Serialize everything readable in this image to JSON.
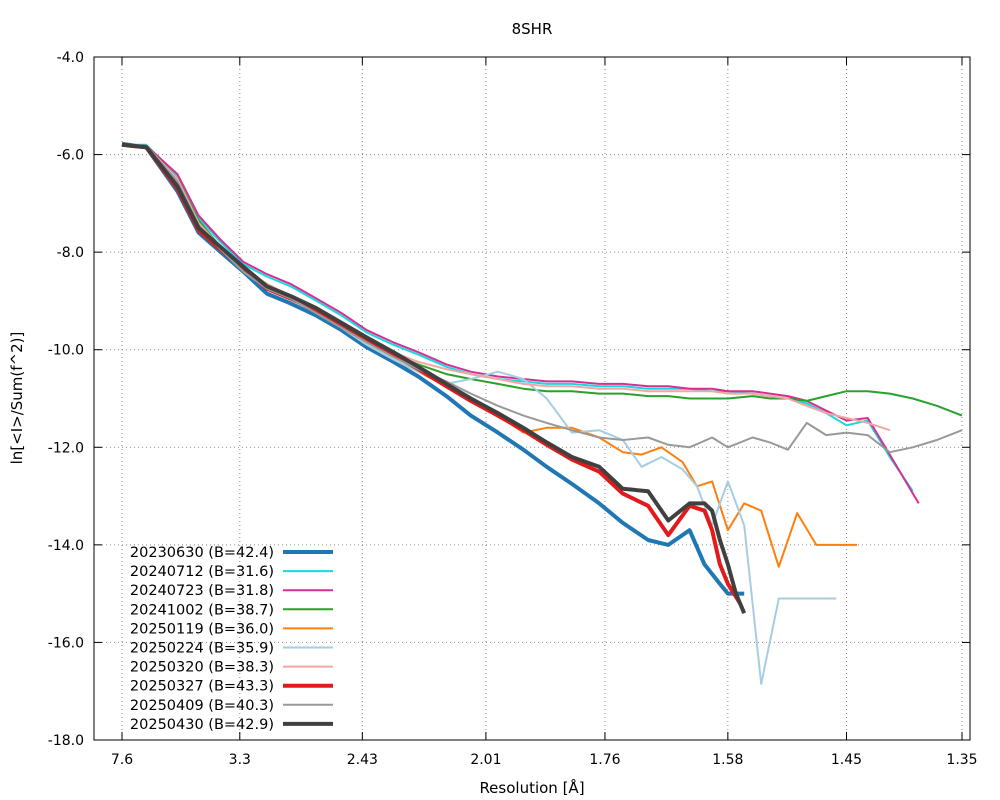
{
  "chart_data": {
    "type": "line",
    "title": "8SHR",
    "xlabel": "Resolution [Å]",
    "ylabel": "ln[<I>/Sum(f^2)]",
    "x_scale": "1/d^2",
    "xlim": [
      7.6,
      1.35
    ],
    "ylim": [
      -18.0,
      -4.0
    ],
    "x_ticks": [
      {
        "value": 7.6,
        "label": "7.6"
      },
      {
        "value": 3.3,
        "label": "3.3"
      },
      {
        "value": 2.43,
        "label": "2.43"
      },
      {
        "value": 2.01,
        "label": "2.01"
      },
      {
        "value": 1.76,
        "label": "1.76"
      },
      {
        "value": 1.58,
        "label": "1.58"
      },
      {
        "value": 1.45,
        "label": "1.45"
      },
      {
        "value": 1.35,
        "label": "1.35"
      }
    ],
    "y_ticks": [
      {
        "value": -4.0,
        "label": "-4.0"
      },
      {
        "value": -6.0,
        "label": "-6.0"
      },
      {
        "value": -8.0,
        "label": "-8.0"
      },
      {
        "value": -10.0,
        "label": "-10.0"
      },
      {
        "value": -12.0,
        "label": "-12.0"
      },
      {
        "value": -14.0,
        "label": "-14.0"
      },
      {
        "value": -16.0,
        "label": "-16.0"
      },
      {
        "value": -18.0,
        "label": "-18.0"
      }
    ],
    "grid": true,
    "legend_position": "bottom-left",
    "series": [
      {
        "name": "20230630 (B=42.4)",
        "color": "#1f77b4",
        "width": 4,
        "x": [
          7.6,
          5.53,
          4.37,
          3.9,
          3.54,
          3.26,
          3.03,
          2.84,
          2.67,
          2.53,
          2.41,
          2.3,
          2.21,
          2.12,
          2.05,
          1.98,
          1.92,
          1.87,
          1.82,
          1.77,
          1.73,
          1.69,
          1.66,
          1.63,
          1.61,
          1.59,
          1.58,
          1.56
        ],
        "y": [
          -5.78,
          -5.85,
          -6.75,
          -7.6,
          -8.0,
          -8.4,
          -8.85,
          -9.05,
          -9.3,
          -9.6,
          -9.95,
          -10.25,
          -10.55,
          -10.95,
          -11.35,
          -11.7,
          -12.05,
          -12.4,
          -12.75,
          -13.15,
          -13.55,
          -13.9,
          -14.0,
          -13.7,
          -14.4,
          -14.8,
          -15.0,
          -15.0
        ]
      },
      {
        "name": "20240712 (B=31.6)",
        "color": "#17d8e0",
        "width": 2,
        "x": [
          7.6,
          5.53,
          4.37,
          3.9,
          3.54,
          3.26,
          3.03,
          2.84,
          2.67,
          2.53,
          2.41,
          2.3,
          2.21,
          2.12,
          2.05,
          1.98,
          1.92,
          1.87,
          1.82,
          1.77,
          1.73,
          1.69,
          1.66,
          1.63,
          1.6,
          1.58,
          1.55,
          1.53,
          1.51,
          1.49,
          1.47,
          1.45,
          1.43,
          1.41,
          1.39
        ],
        "y": [
          -5.8,
          -5.8,
          -6.45,
          -7.3,
          -7.8,
          -8.25,
          -8.5,
          -8.7,
          -9.0,
          -9.3,
          -9.65,
          -9.9,
          -10.1,
          -10.35,
          -10.5,
          -10.6,
          -10.65,
          -10.7,
          -10.7,
          -10.75,
          -10.75,
          -10.8,
          -10.8,
          -10.8,
          -10.85,
          -10.85,
          -10.9,
          -10.95,
          -11.0,
          -11.1,
          -11.3,
          -11.55,
          -11.45,
          -12.2,
          -12.9
        ]
      },
      {
        "name": "20240723 (B=31.8)",
        "color": "#d62f92",
        "width": 2,
        "x": [
          7.6,
          5.53,
          4.37,
          3.9,
          3.54,
          3.26,
          3.03,
          2.84,
          2.67,
          2.53,
          2.41,
          2.3,
          2.21,
          2.12,
          2.05,
          1.98,
          1.92,
          1.87,
          1.82,
          1.77,
          1.73,
          1.69,
          1.66,
          1.63,
          1.6,
          1.58,
          1.55,
          1.53,
          1.51,
          1.49,
          1.47,
          1.45,
          1.43,
          1.41,
          1.385
        ],
        "y": [
          -5.8,
          -5.82,
          -6.4,
          -7.25,
          -7.75,
          -8.2,
          -8.45,
          -8.65,
          -8.95,
          -9.25,
          -9.6,
          -9.85,
          -10.05,
          -10.3,
          -10.45,
          -10.55,
          -10.6,
          -10.65,
          -10.65,
          -10.7,
          -10.7,
          -10.75,
          -10.75,
          -10.8,
          -10.8,
          -10.85,
          -10.85,
          -10.9,
          -10.95,
          -11.05,
          -11.25,
          -11.45,
          -11.4,
          -12.15,
          -13.15
        ]
      },
      {
        "name": "20241002 (B=38.7)",
        "color": "#2ca02c",
        "width": 2,
        "x": [
          7.6,
          5.53,
          4.37,
          3.9,
          3.54,
          3.26,
          3.03,
          2.84,
          2.67,
          2.53,
          2.41,
          2.3,
          2.21,
          2.12,
          2.05,
          1.98,
          1.92,
          1.87,
          1.82,
          1.77,
          1.73,
          1.69,
          1.66,
          1.63,
          1.6,
          1.58,
          1.55,
          1.53,
          1.51,
          1.49,
          1.47,
          1.45,
          1.43,
          1.41,
          1.39,
          1.37,
          1.35
        ],
        "y": [
          -5.8,
          -5.82,
          -6.5,
          -7.35,
          -7.9,
          -8.35,
          -8.65,
          -8.9,
          -9.2,
          -9.5,
          -9.85,
          -10.1,
          -10.3,
          -10.5,
          -10.6,
          -10.7,
          -10.8,
          -10.85,
          -10.85,
          -10.9,
          -10.9,
          -10.95,
          -10.95,
          -11.0,
          -11.0,
          -11.0,
          -10.95,
          -11.0,
          -11.0,
          -11.05,
          -10.95,
          -10.85,
          -10.85,
          -10.9,
          -11.0,
          -11.15,
          -11.35
        ]
      },
      {
        "name": "20250119 (B=36.0)",
        "color": "#ff7f0e",
        "width": 2,
        "x": [
          7.6,
          5.53,
          4.37,
          3.9,
          3.54,
          3.26,
          3.03,
          2.84,
          2.67,
          2.53,
          2.41,
          2.3,
          2.21,
          2.12,
          2.05,
          1.98,
          1.92,
          1.87,
          1.82,
          1.77,
          1.73,
          1.7,
          1.67,
          1.64,
          1.62,
          1.6,
          1.58,
          1.56,
          1.54,
          1.52,
          1.5,
          1.48,
          1.46,
          1.44
        ],
        "y": [
          -5.8,
          -5.83,
          -6.55,
          -7.45,
          -7.95,
          -8.4,
          -8.75,
          -8.95,
          -9.25,
          -9.55,
          -9.9,
          -10.2,
          -10.45,
          -10.75,
          -11.0,
          -11.35,
          -11.7,
          -11.6,
          -11.6,
          -11.8,
          -12.1,
          -12.15,
          -12.0,
          -12.3,
          -12.8,
          -12.7,
          -13.7,
          -13.15,
          -13.3,
          -14.45,
          -13.35,
          -14.0,
          -14.0,
          -14.0
        ]
      },
      {
        "name": "20250224 (B=35.9)",
        "color": "#a6cee3",
        "width": 2,
        "x": [
          7.6,
          5.53,
          4.37,
          3.9,
          3.54,
          3.26,
          3.03,
          2.84,
          2.67,
          2.53,
          2.41,
          2.3,
          2.21,
          2.12,
          2.05,
          1.98,
          1.92,
          1.87,
          1.82,
          1.77,
          1.73,
          1.7,
          1.67,
          1.64,
          1.62,
          1.6,
          1.58,
          1.56,
          1.54,
          1.52,
          1.5,
          1.48,
          1.46
        ],
        "y": [
          -5.8,
          -5.83,
          -6.55,
          -7.45,
          -7.95,
          -8.4,
          -8.75,
          -8.95,
          -9.25,
          -9.55,
          -9.9,
          -10.2,
          -10.45,
          -10.7,
          -10.6,
          -10.45,
          -10.6,
          -11.0,
          -11.7,
          -11.65,
          -11.85,
          -12.4,
          -12.2,
          -12.45,
          -12.8,
          -13.6,
          -12.7,
          -13.6,
          -16.85,
          -15.1,
          -15.1,
          -15.1,
          -15.1
        ]
      },
      {
        "name": "20250320 (B=38.3)",
        "color": "#f4a6a0",
        "width": 2,
        "x": [
          7.6,
          5.53,
          4.37,
          3.9,
          3.54,
          3.26,
          3.03,
          2.84,
          2.67,
          2.53,
          2.41,
          2.3,
          2.21,
          2.12,
          2.05,
          1.98,
          1.92,
          1.87,
          1.82,
          1.77,
          1.73,
          1.69,
          1.66,
          1.63,
          1.6,
          1.58,
          1.55,
          1.53,
          1.51,
          1.49,
          1.47,
          1.45,
          1.43,
          1.41
        ],
        "y": [
          -5.8,
          -5.83,
          -6.5,
          -7.4,
          -7.9,
          -8.35,
          -8.65,
          -8.9,
          -9.2,
          -9.5,
          -9.8,
          -10.05,
          -10.25,
          -10.4,
          -10.5,
          -10.6,
          -10.7,
          -10.75,
          -10.75,
          -10.8,
          -10.8,
          -10.85,
          -10.85,
          -10.85,
          -10.85,
          -10.9,
          -10.9,
          -10.95,
          -11.0,
          -11.15,
          -11.3,
          -11.4,
          -11.5,
          -11.65
        ]
      },
      {
        "name": "20250327 (B=43.3)",
        "color": "#e31a1c",
        "width": 4,
        "x": [
          7.6,
          5.53,
          4.37,
          3.9,
          3.54,
          3.26,
          3.03,
          2.84,
          2.67,
          2.53,
          2.41,
          2.3,
          2.21,
          2.12,
          2.05,
          1.98,
          1.92,
          1.87,
          1.82,
          1.77,
          1.73,
          1.69,
          1.66,
          1.63,
          1.61,
          1.6,
          1.59,
          1.58,
          1.565
        ],
        "y": [
          -5.8,
          -5.85,
          -6.7,
          -7.55,
          -7.95,
          -8.35,
          -8.75,
          -8.95,
          -9.2,
          -9.5,
          -9.8,
          -10.1,
          -10.4,
          -10.75,
          -11.05,
          -11.35,
          -11.65,
          -11.95,
          -12.25,
          -12.5,
          -12.95,
          -13.2,
          -13.8,
          -13.2,
          -13.3,
          -13.7,
          -14.4,
          -14.8,
          -15.2
        ]
      },
      {
        "name": "20250409 (B=40.3)",
        "color": "#999999",
        "width": 2,
        "x": [
          7.6,
          5.53,
          4.37,
          3.9,
          3.54,
          3.26,
          3.03,
          2.84,
          2.67,
          2.53,
          2.41,
          2.3,
          2.21,
          2.12,
          2.05,
          1.98,
          1.92,
          1.87,
          1.82,
          1.77,
          1.73,
          1.69,
          1.66,
          1.63,
          1.6,
          1.58,
          1.55,
          1.53,
          1.51,
          1.49,
          1.47,
          1.45,
          1.43,
          1.41,
          1.39,
          1.37,
          1.35
        ],
        "y": [
          -5.8,
          -5.83,
          -6.55,
          -7.45,
          -7.95,
          -8.4,
          -8.75,
          -8.95,
          -9.25,
          -9.55,
          -9.85,
          -10.15,
          -10.4,
          -10.65,
          -10.9,
          -11.15,
          -11.35,
          -11.5,
          -11.65,
          -11.8,
          -11.85,
          -11.8,
          -11.95,
          -12.0,
          -11.8,
          -12.0,
          -11.8,
          -11.9,
          -12.05,
          -11.5,
          -11.75,
          -11.7,
          -11.75,
          -12.1,
          -12.0,
          -11.85,
          -11.65
        ]
      },
      {
        "name": "20250430 (B=42.9)",
        "color": "#404040",
        "width": 4,
        "x": [
          7.6,
          5.53,
          4.37,
          3.9,
          3.54,
          3.26,
          3.03,
          2.84,
          2.67,
          2.53,
          2.41,
          2.3,
          2.21,
          2.12,
          2.05,
          1.98,
          1.92,
          1.87,
          1.82,
          1.77,
          1.73,
          1.69,
          1.66,
          1.63,
          1.61,
          1.6,
          1.59,
          1.58,
          1.57,
          1.56
        ],
        "y": [
          -5.8,
          -5.85,
          -6.65,
          -7.5,
          -7.9,
          -8.3,
          -8.7,
          -8.9,
          -9.15,
          -9.45,
          -9.75,
          -10.05,
          -10.35,
          -10.7,
          -11.0,
          -11.3,
          -11.6,
          -11.9,
          -12.2,
          -12.4,
          -12.85,
          -12.9,
          -13.5,
          -13.15,
          -13.15,
          -13.3,
          -13.9,
          -14.4,
          -15.0,
          -15.4
        ]
      }
    ]
  }
}
